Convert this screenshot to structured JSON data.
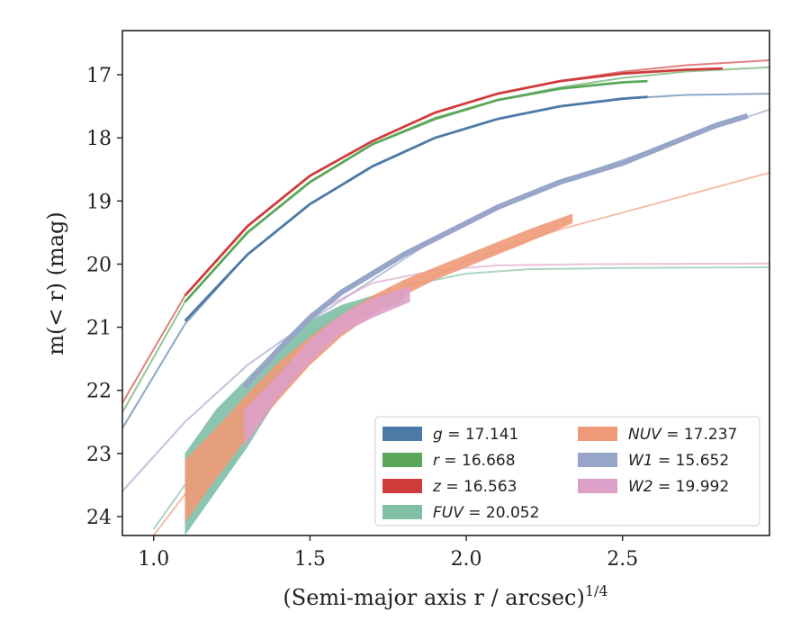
{
  "chart_data": {
    "type": "line",
    "xlabel": "(Semi-major axis r / arcsec)",
    "xlabel_exponent": "1/4",
    "ylabel": "m(< r) (mag)",
    "xlim": [
      0.9,
      2.97
    ],
    "ylim": [
      24.3,
      16.3
    ],
    "y_inverted": true,
    "grid": false,
    "legend_position": "lower-right",
    "x_ticks": [
      "1.0",
      "1.5",
      "2.0",
      "2.5"
    ],
    "y_ticks": [
      "17",
      "18",
      "19",
      "20",
      "21",
      "22",
      "23",
      "24"
    ],
    "series": [
      {
        "name": "g = 17.141",
        "band": "g",
        "value": "17.141",
        "color": "#4c7aa6",
        "kind": "line",
        "x": [
          1.1,
          1.3,
          1.5,
          1.7,
          1.9,
          2.1,
          2.3,
          2.5,
          2.58
        ],
        "y": [
          20.9,
          19.85,
          19.05,
          18.45,
          18.0,
          17.7,
          17.5,
          17.38,
          17.35
        ],
        "model_x": [
          0.9,
          1.1,
          1.3,
          1.5,
          1.7,
          1.9,
          2.1,
          2.3,
          2.5,
          2.7,
          2.97
        ],
        "model_y": [
          22.6,
          20.95,
          19.85,
          19.05,
          18.45,
          18.0,
          17.7,
          17.5,
          17.38,
          17.32,
          17.3
        ]
      },
      {
        "name": "r = 16.668",
        "band": "r",
        "value": "16.668",
        "color": "#5aa75a",
        "kind": "line",
        "x": [
          1.1,
          1.3,
          1.5,
          1.7,
          1.9,
          2.1,
          2.3,
          2.5,
          2.58
        ],
        "y": [
          20.6,
          19.5,
          18.7,
          18.1,
          17.7,
          17.4,
          17.22,
          17.12,
          17.1
        ],
        "model_x": [
          0.9,
          1.1,
          1.3,
          1.5,
          1.7,
          1.9,
          2.1,
          2.3,
          2.5,
          2.7,
          2.97
        ],
        "model_y": [
          22.35,
          20.6,
          19.5,
          18.7,
          18.1,
          17.68,
          17.4,
          17.2,
          17.05,
          16.95,
          16.88
        ]
      },
      {
        "name": "z = 16.563",
        "band": "z",
        "value": "16.563",
        "color": "#d03c3c",
        "kind": "line",
        "x": [
          1.1,
          1.3,
          1.5,
          1.7,
          1.9,
          2.1,
          2.3,
          2.5,
          2.7,
          2.82
        ],
        "y": [
          20.5,
          19.4,
          18.6,
          18.05,
          17.6,
          17.3,
          17.1,
          16.98,
          16.92,
          16.9
        ],
        "model_x": [
          0.9,
          1.1,
          1.3,
          1.5,
          1.7,
          1.9,
          2.1,
          2.3,
          2.5,
          2.7,
          2.97
        ],
        "model_y": [
          22.2,
          20.5,
          19.4,
          18.6,
          18.05,
          17.6,
          17.3,
          17.1,
          16.95,
          16.85,
          16.77
        ]
      },
      {
        "name": "FUV = 20.052",
        "band": "FUV",
        "value": "20.052",
        "color": "#7fbfa6",
        "kind": "band",
        "x": [
          1.1,
          1.2,
          1.3,
          1.4,
          1.5,
          1.6,
          1.7,
          1.8
        ],
        "y_upper": [
          23.0,
          22.3,
          21.8,
          21.3,
          20.9,
          20.65,
          20.5,
          20.45
        ],
        "y_lower": [
          24.3,
          23.6,
          22.9,
          22.1,
          21.5,
          21.0,
          20.75,
          20.6
        ],
        "model_x": [
          1.0,
          1.2,
          1.4,
          1.6,
          1.8,
          2.0,
          2.2,
          2.5,
          2.97
        ],
        "model_y": [
          24.2,
          22.8,
          21.5,
          20.75,
          20.35,
          20.15,
          20.08,
          20.06,
          20.05
        ]
      },
      {
        "name": "NUV = 17.237",
        "band": "NUV",
        "value": "17.237",
        "color": "#ee9a78",
        "kind": "band",
        "x": [
          1.1,
          1.2,
          1.3,
          1.4,
          1.5,
          1.6,
          1.7,
          1.8,
          1.9,
          2.0,
          2.1,
          2.2,
          2.34
        ],
        "y_upper": [
          23.1,
          22.6,
          22.05,
          21.55,
          21.15,
          20.8,
          20.5,
          20.25,
          20.05,
          19.85,
          19.65,
          19.45,
          19.2
        ],
        "y_lower": [
          24.1,
          23.4,
          22.75,
          22.15,
          21.6,
          21.15,
          20.8,
          20.5,
          20.25,
          20.05,
          19.85,
          19.65,
          19.35
        ],
        "model_x": [
          1.0,
          1.2,
          1.4,
          1.6,
          1.8,
          2.0,
          2.3,
          2.6,
          2.97
        ],
        "model_y": [
          24.3,
          23.0,
          21.8,
          21.0,
          20.4,
          19.95,
          19.45,
          19.05,
          18.55
        ]
      },
      {
        "name": "W1 = 15.652",
        "band": "W1",
        "value": "15.652",
        "color": "#97a6c8",
        "kind": "line",
        "x": [
          1.29,
          1.4,
          1.5,
          1.6,
          1.7,
          1.8,
          1.9,
          2.0,
          2.1,
          2.2,
          2.3,
          2.4,
          2.5,
          2.6,
          2.7,
          2.8,
          2.9
        ],
        "y": [
          21.95,
          21.35,
          20.85,
          20.45,
          20.15,
          19.85,
          19.6,
          19.35,
          19.1,
          18.9,
          18.7,
          18.55,
          18.4,
          18.2,
          18.0,
          17.8,
          17.65
        ],
        "model_x": [
          0.9,
          1.1,
          1.3,
          1.5,
          1.7,
          1.9,
          2.1,
          2.3,
          2.5,
          2.7,
          2.97
        ],
        "model_y": [
          23.6,
          22.5,
          21.6,
          20.9,
          20.25,
          19.6,
          19.1,
          18.7,
          18.35,
          18.0,
          17.55
        ]
      },
      {
        "name": "W2 = 19.992",
        "band": "W2",
        "value": "19.992",
        "color": "#dda0c8",
        "kind": "band",
        "x": [
          1.29,
          1.4,
          1.5,
          1.6,
          1.7,
          1.82
        ],
        "y_upper": [
          22.3,
          21.75,
          21.2,
          20.8,
          20.55,
          20.35
        ],
        "y_lower": [
          22.9,
          22.1,
          21.55,
          21.1,
          20.85,
          20.6
        ],
        "model_x": [
          1.5,
          1.7,
          1.9,
          2.1,
          2.4,
          2.97
        ],
        "model_y": [
          20.8,
          20.3,
          20.1,
          20.02,
          20.0,
          19.99
        ]
      }
    ]
  }
}
